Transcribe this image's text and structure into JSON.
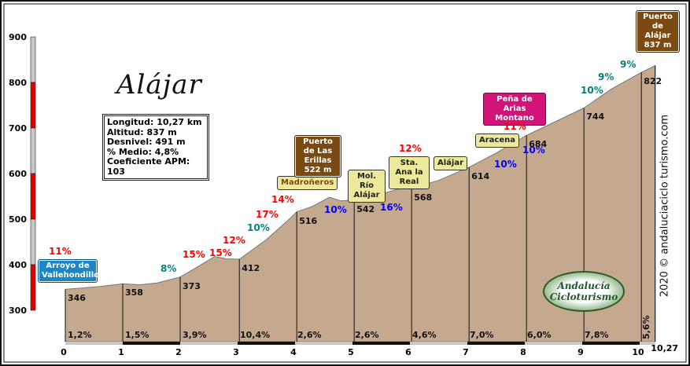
{
  "chart_data": {
    "type": "area",
    "title": "Alájar",
    "xlim": [
      0,
      10.27
    ],
    "ylim": [
      300,
      900
    ],
    "x_ticks": [
      "0",
      "1",
      "2",
      "3",
      "4",
      "5",
      "6",
      "7",
      "8",
      "9",
      "10",
      "10,27"
    ],
    "y_ticks": [
      "900",
      "800",
      "700",
      "600",
      "500",
      "400",
      "300"
    ],
    "profile": {
      "x": [
        0,
        0.3,
        0.6,
        1.0,
        1.3,
        1.6,
        2.0,
        2.3,
        2.6,
        2.8,
        3.03,
        3.5,
        3.9,
        4.03,
        4.3,
        4.6,
        4.8,
        5.03,
        5.4,
        5.8,
        6.03,
        6.5,
        7.03,
        7.5,
        8.03,
        8.5,
        9.03,
        9.5,
        10.03,
        10.27
      ],
      "y": [
        346,
        349,
        352,
        358,
        356,
        360,
        373,
        395,
        418,
        413,
        412,
        455,
        500,
        516,
        528,
        548,
        540,
        542,
        552,
        566,
        568,
        585,
        614,
        645,
        684,
        712,
        744,
        785,
        822,
        837
      ]
    },
    "point_labels": [
      "346",
      "358",
      "373",
      "412",
      "516",
      "542",
      "568",
      "614",
      "684",
      "744",
      "822"
    ],
    "km_gradients": [
      "1,2%",
      "1,5%",
      "3,9%",
      "10,4%",
      "2,6%",
      "2,6%",
      "4,6%",
      "7,0%",
      "6,0%",
      "7,8%",
      "5,6%"
    ],
    "gradient_scale_colors": [
      "#e00000",
      "#c8c8c8"
    ],
    "fill_color": "#c4a98e",
    "ramp_labels": [
      "11%",
      "15%",
      "8%",
      "15%",
      "12%",
      "10%",
      "17%",
      "14%",
      "10%",
      "16%",
      "12%",
      "11%",
      "10%",
      "10%",
      "10%",
      "9%",
      "9%"
    ],
    "ramp_colors": {
      "steep": "#ff0000",
      "moderate": "#008080",
      "descent": "#0000ff"
    }
  },
  "info": {
    "longitud": "Longitud: 10,27 km",
    "altitud": "Altitud: 837 m",
    "desnivel": "Desnivel: 491 m",
    "medio": "% Medio: 4,8%",
    "apm": "Coeficiente APM: 103"
  },
  "signs": {
    "arroyo": "Arroyo de Vallehondillo",
    "madronyeros": "Madroñeros",
    "erillas": "Puerto de Las Erillas 522 m",
    "molrio": "Mol. Río Alájar",
    "staana": "Sta. Ana la Real",
    "alajar": "Alájar",
    "aracena": "Aracena",
    "pena": "Peña de Arias Montano",
    "puerto_alajar": "Puerto de Alájar 837 m"
  },
  "credit": "2020 © andaluciaciclo turismo.com",
  "logo": "Andalucía Cicloturismo"
}
